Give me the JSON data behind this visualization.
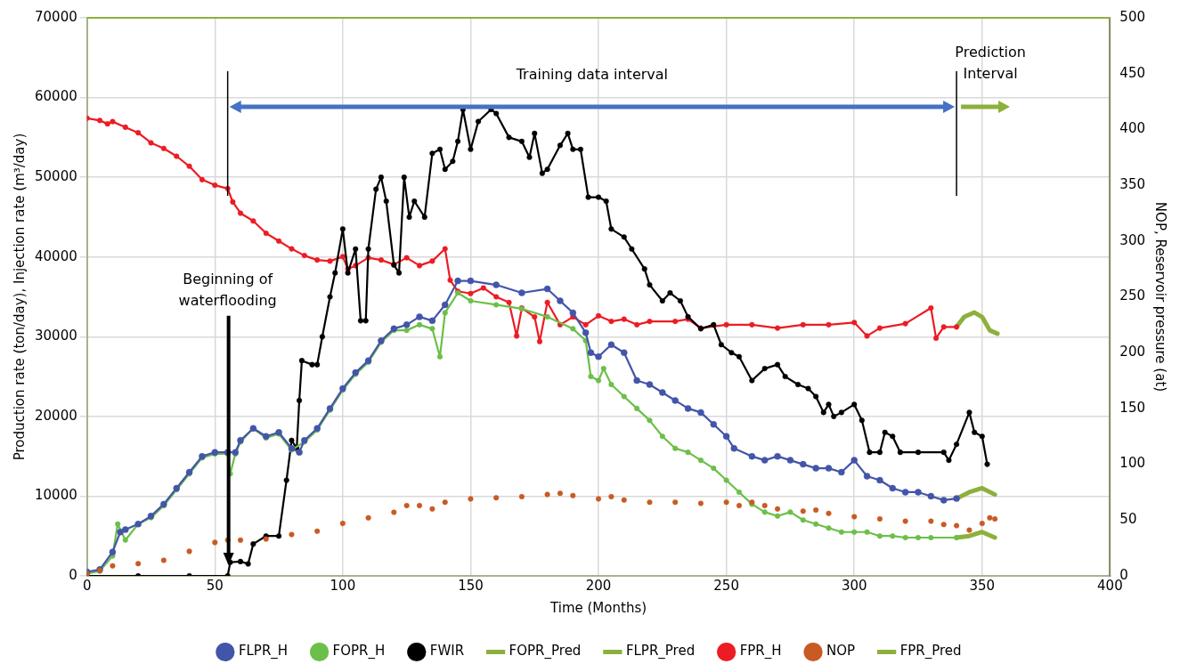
{
  "chart_data": {
    "type": "line",
    "xlabel": "Time (Months)",
    "ylabel": "Production rate (ton/day), Injection rate (m³/day)",
    "y2label": "NOP, Reservoir pressure (at)",
    "xlim": [
      0,
      400
    ],
    "xticks": [
      0,
      50,
      100,
      150,
      200,
      250,
      300,
      350,
      400
    ],
    "ylim": [
      0,
      70000
    ],
    "yticks": [
      0,
      10000,
      20000,
      30000,
      40000,
      50000,
      60000,
      70000
    ],
    "y2lim": [
      0,
      500
    ],
    "y2ticks": [
      0,
      50,
      100,
      150,
      200,
      250,
      300,
      350,
      400,
      450,
      500
    ],
    "grid": true,
    "legend": "bottom",
    "marker": "circle",
    "series": [
      {
        "name": "FLPR_H",
        "color": "#4355a8",
        "x": [
          0,
          5,
          10,
          13,
          15,
          20,
          25,
          30,
          35,
          40,
          45,
          50,
          55,
          58,
          60,
          65,
          70,
          75,
          80,
          83,
          85,
          90,
          95,
          100,
          105,
          110,
          115,
          120,
          125,
          130,
          135,
          140,
          145,
          150,
          160,
          170,
          180,
          185,
          190,
          195,
          197,
          200,
          205,
          210,
          215,
          220,
          225,
          230,
          235,
          240,
          245,
          250,
          253,
          260,
          265,
          270,
          275,
          280,
          285,
          290,
          295,
          300,
          305,
          310,
          315,
          320,
          325,
          330,
          335,
          340
        ],
        "values": [
          500,
          800,
          3000,
          5500,
          5800,
          6500,
          7500,
          9000,
          11000,
          13000,
          15000,
          15500,
          15500,
          15500,
          17000,
          18500,
          17500,
          18000,
          16000,
          15500,
          17000,
          18500,
          21000,
          23500,
          25500,
          27000,
          29500,
          31000,
          31500,
          32500,
          32000,
          34000,
          37000,
          37000,
          36500,
          35500,
          36000,
          34500,
          33000,
          30500,
          28000,
          27500,
          29000,
          28000,
          24500,
          24000,
          23000,
          22000,
          21000,
          20500,
          19000,
          17500,
          16000,
          15000,
          14500,
          15000,
          14500,
          14000,
          13500,
          13500,
          13000,
          14500,
          12500,
          12000,
          11000,
          10500,
          10500,
          10000,
          9500,
          9700
        ]
      },
      {
        "name": "FOPR_H",
        "color": "#6cbf4a",
        "x": [
          0,
          5,
          10,
          12,
          15,
          20,
          25,
          30,
          35,
          40,
          45,
          50,
          55,
          56,
          58,
          60,
          65,
          70,
          75,
          80,
          85,
          90,
          95,
          100,
          105,
          110,
          115,
          120,
          125,
          130,
          135,
          138,
          140,
          145,
          150,
          160,
          170,
          180,
          190,
          195,
          197,
          200,
          202,
          205,
          210,
          215,
          220,
          225,
          230,
          235,
          240,
          245,
          250,
          255,
          260,
          265,
          270,
          275,
          280,
          285,
          290,
          295,
          300,
          305,
          310,
          315,
          320,
          325,
          330,
          340
        ],
        "values": [
          300,
          600,
          2500,
          6500,
          4500,
          6500,
          7300,
          8800,
          10800,
          12800,
          14800,
          15300,
          15300,
          12800,
          15300,
          16800,
          18500,
          17300,
          17800,
          15800,
          16800,
          18300,
          20800,
          23300,
          25300,
          26800,
          29300,
          30800,
          30800,
          31500,
          31000,
          27500,
          33000,
          35500,
          34500,
          34000,
          33500,
          32500,
          31000,
          29500,
          25000,
          24500,
          26000,
          24000,
          22500,
          21000,
          19500,
          17500,
          16000,
          15500,
          14500,
          13500,
          12000,
          10500,
          9000,
          8000,
          7500,
          8000,
          7000,
          6500,
          6000,
          5500,
          5500,
          5500,
          5000,
          5000,
          4800,
          4800,
          4800,
          4800
        ]
      },
      {
        "name": "FWIR",
        "color": "#000000",
        "x": [
          0,
          20,
          40,
          55,
          56,
          60,
          63,
          65,
          70,
          75,
          78,
          80,
          82,
          83,
          84,
          88,
          90,
          92,
          95,
          97,
          100,
          102,
          105,
          107,
          109,
          110,
          113,
          115,
          117,
          120,
          122,
          124,
          126,
          128,
          132,
          135,
          138,
          140,
          143,
          145,
          147,
          150,
          153,
          158,
          160,
          165,
          170,
          173,
          175,
          178,
          180,
          185,
          188,
          190,
          193,
          196,
          200,
          203,
          205,
          210,
          213,
          218,
          220,
          225,
          228,
          232,
          235,
          240,
          245,
          248,
          252,
          255,
          260,
          265,
          270,
          273,
          278,
          282,
          285,
          288,
          290,
          292,
          295,
          300,
          303,
          306,
          310,
          312,
          315,
          318,
          325,
          335,
          337,
          340,
          345,
          347,
          350,
          352
        ],
        "values": [
          0,
          0,
          0,
          0,
          1700,
          1800,
          1500,
          4000,
          5000,
          5000,
          12000,
          17000,
          16000,
          22000,
          27000,
          26500,
          26500,
          30000,
          35000,
          38000,
          43500,
          38000,
          41000,
          32000,
          32000,
          41000,
          48500,
          50000,
          47000,
          39000,
          38000,
          50000,
          45000,
          47000,
          45000,
          53000,
          53500,
          51000,
          52000,
          54500,
          58500,
          53500,
          57000,
          58500,
          58000,
          55000,
          54500,
          52500,
          55500,
          50500,
          51000,
          54000,
          55500,
          53500,
          53500,
          47500,
          47500,
          47000,
          43500,
          42500,
          41000,
          38500,
          36500,
          34500,
          35500,
          34500,
          32500,
          31000,
          31500,
          29000,
          28000,
          27500,
          24500,
          26000,
          26500,
          25000,
          24000,
          23500,
          22500,
          20500,
          21500,
          20000,
          20500,
          21500,
          19500,
          15500,
          15500,
          18000,
          17500,
          15500,
          15500,
          15500,
          14500,
          16500,
          20500,
          18000,
          17500,
          14000
        ]
      },
      {
        "name": "FOPR_Pred",
        "color": "#8db03c",
        "marker": "none",
        "x": [
          340,
          345,
          350,
          355
        ],
        "values": [
          4800,
          5000,
          5500,
          4800
        ]
      },
      {
        "name": "FLPR_Pred",
        "color": "#8db03c",
        "marker": "none",
        "x": [
          340,
          345,
          350,
          355
        ],
        "values": [
          9700,
          10500,
          11000,
          10200
        ]
      },
      {
        "name": "FPR_H",
        "color": "#ec1c24",
        "axis": "y2",
        "x": [
          0,
          5,
          8,
          10,
          15,
          20,
          25,
          30,
          35,
          40,
          45,
          50,
          55,
          57,
          60,
          65,
          70,
          75,
          80,
          85,
          90,
          95,
          100,
          102,
          105,
          110,
          115,
          120,
          125,
          130,
          135,
          140,
          142,
          145,
          150,
          155,
          160,
          165,
          168,
          170,
          175,
          177,
          180,
          185,
          190,
          195,
          200,
          205,
          210,
          215,
          220,
          230,
          235,
          240,
          250,
          260,
          270,
          280,
          290,
          300,
          305,
          310,
          320,
          330,
          332,
          335,
          340
        ],
        "values": [
          410,
          408,
          405,
          407,
          402,
          397,
          388,
          383,
          376,
          367,
          355,
          350,
          347,
          335,
          325,
          318,
          307,
          300,
          293,
          287,
          283,
          282,
          286,
          275,
          278,
          285,
          283,
          279,
          285,
          278,
          282,
          293,
          265,
          255,
          253,
          258,
          250,
          245,
          215,
          240,
          232,
          210,
          245,
          225,
          232,
          225,
          233,
          228,
          230,
          225,
          228,
          228,
          230,
          222,
          225,
          225,
          222,
          225,
          225,
          227,
          215,
          222,
          226,
          240,
          213,
          223,
          223
        ]
      },
      {
        "name": "NOP",
        "color": "#c85a24",
        "type": "scatter",
        "axis": "y2",
        "x": [
          0,
          5,
          10,
          20,
          30,
          40,
          50,
          55,
          60,
          70,
          80,
          90,
          100,
          110,
          120,
          125,
          130,
          135,
          140,
          150,
          160,
          170,
          180,
          185,
          190,
          200,
          205,
          210,
          220,
          230,
          240,
          250,
          255,
          260,
          265,
          270,
          280,
          285,
          290,
          300,
          310,
          320,
          330,
          335,
          340,
          345,
          350,
          353,
          355
        ],
        "values": [
          2,
          5,
          9,
          11,
          14,
          22,
          30,
          32,
          32,
          33,
          37,
          40,
          47,
          52,
          57,
          63,
          63,
          60,
          66,
          69,
          70,
          71,
          73,
          74,
          72,
          69,
          71,
          68,
          66,
          66,
          65,
          66,
          63,
          66,
          63,
          60,
          58,
          59,
          56,
          53,
          51,
          49,
          49,
          46,
          45,
          41,
          47,
          52,
          51
        ]
      },
      {
        "name": "FPR_Pred",
        "color": "#8db03c",
        "marker": "none",
        "axis": "y2",
        "x": [
          340,
          343,
          347,
          350,
          353,
          356
        ],
        "values": [
          223,
          232,
          236,
          232,
          220,
          217
        ]
      }
    ],
    "ref_lines": [
      {
        "axis": "x",
        "value": 55,
        "color": "#000000"
      },
      {
        "axis": "x",
        "value": 340,
        "color": "#000000"
      }
    ],
    "annotations": [
      "Training data interval",
      "Prediction Interval",
      "Beginning of waterflooding"
    ]
  }
}
